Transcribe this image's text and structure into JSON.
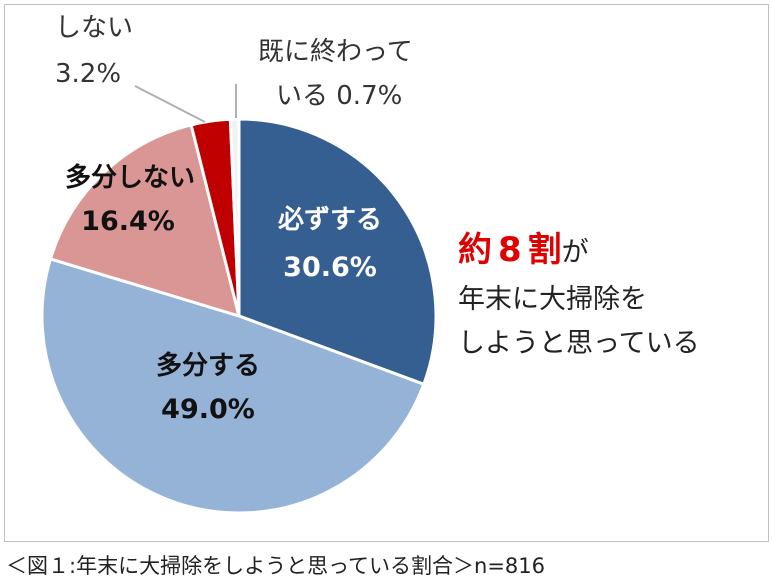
{
  "chart_data": {
    "type": "pie",
    "start_angle_deg": 0,
    "direction": "clockwise",
    "slices": [
      {
        "label": "必ずする",
        "value": 30.6,
        "display": "30.6%",
        "color": "#365f91"
      },
      {
        "label": "多分する",
        "value": 49.0,
        "display": "49.0%",
        "color": "#95b3d7"
      },
      {
        "label": "多分しない",
        "value": 16.4,
        "display": "16.4%",
        "color": "#d99694"
      },
      {
        "label": "しない",
        "value": 3.2,
        "display": "3.2%",
        "color": "#c00000"
      },
      {
        "label": "既に終わっている",
        "value": 0.7,
        "display": "0.7%",
        "color": "#f2f2f2"
      }
    ]
  },
  "labels": {
    "must_name": "必ずする",
    "must_value": "30.6%",
    "maybe_name": "多分する",
    "maybe_value": "49.0%",
    "maybe_not_name": "多分しない",
    "maybe_not_value": "16.4%",
    "not_name": "しない",
    "not_value": "3.2%",
    "done_line1": "既に終わって",
    "done_line2": "いる 0.7%"
  },
  "callout": {
    "highlight_prefix": "約",
    "highlight_number": "8",
    "highlight_suffix": "割",
    "particle": "が",
    "line2": "年末に大掃除を",
    "line3": "しようと思っている"
  },
  "caption": "＜図１:年末に大掃除をしようと思っている割合＞n=816"
}
